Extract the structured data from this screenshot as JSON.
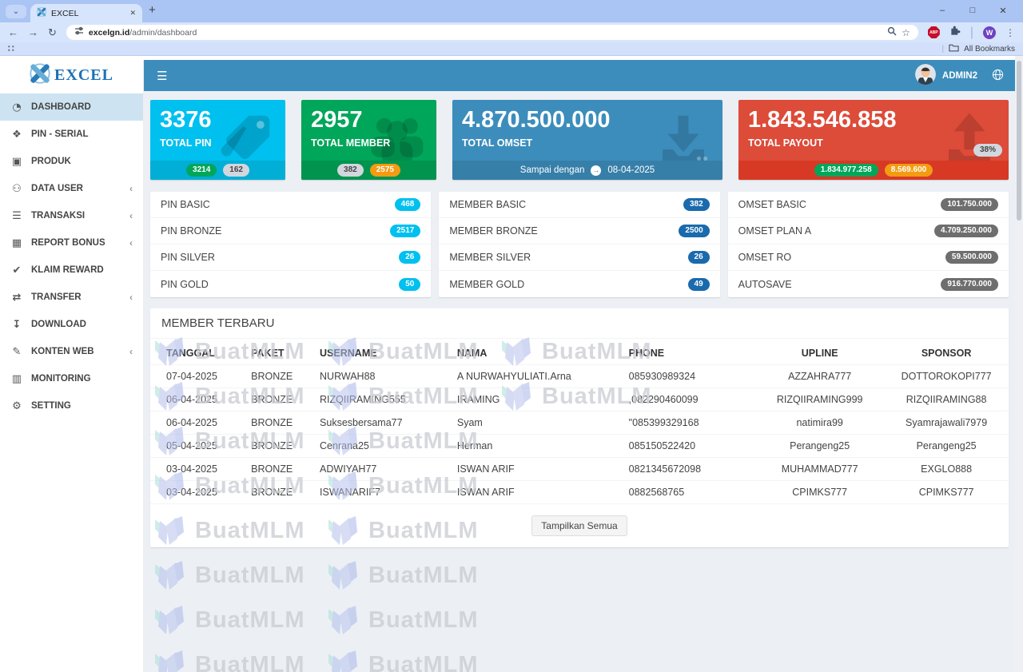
{
  "browser": {
    "tab_title": "EXCEL",
    "new_tab": "+",
    "url_host": "excelgn.id",
    "url_path": "/admin/dashboard",
    "bookmarks_label": "All Bookmarks",
    "profile_initial": "W",
    "abp_label": "ABP"
  },
  "header": {
    "user": "ADMIN2"
  },
  "sidebar": {
    "logo_text": "EXCEL",
    "items": [
      {
        "label": "DASHBOARD",
        "icon": "dashboard-icon",
        "glyph": "◔",
        "active": true,
        "chevron": false
      },
      {
        "label": "PIN - SERIAL",
        "icon": "tag-icon",
        "glyph": "❖",
        "active": false,
        "chevron": false
      },
      {
        "label": "PRODUK",
        "icon": "cube-icon",
        "glyph": "▣",
        "active": false,
        "chevron": false
      },
      {
        "label": "DATA USER",
        "icon": "users-icon",
        "glyph": "⚇",
        "active": false,
        "chevron": true
      },
      {
        "label": "TRANSAKSI",
        "icon": "list-icon",
        "glyph": "☰",
        "active": false,
        "chevron": true
      },
      {
        "label": "REPORT BONUS",
        "icon": "money-icon",
        "glyph": "▦",
        "active": false,
        "chevron": true
      },
      {
        "label": "KLAIM REWARD",
        "icon": "check-icon",
        "glyph": "✔",
        "active": false,
        "chevron": false
      },
      {
        "label": "TRANSFER",
        "icon": "transfer-icon",
        "glyph": "⇄",
        "active": false,
        "chevron": true
      },
      {
        "label": "DOWNLOAD",
        "icon": "download-icon",
        "glyph": "↧",
        "active": false,
        "chevron": false
      },
      {
        "label": "KONTEN WEB",
        "icon": "edit-icon",
        "glyph": "✎",
        "active": false,
        "chevron": true
      },
      {
        "label": "MONITORING",
        "icon": "chart-icon",
        "glyph": "▥",
        "active": false,
        "chevron": false
      },
      {
        "label": "SETTING",
        "icon": "gears-icon",
        "glyph": "⚙",
        "active": false,
        "chevron": false
      }
    ]
  },
  "cards": [
    {
      "value": "3376",
      "label": "TOTAL PIN",
      "color": "#00c0ef",
      "footer_color": "#00aed6",
      "icon": "tags-icon",
      "badges": [
        {
          "text": "3214",
          "color": "#00a65a",
          "dark": false
        },
        {
          "text": "162",
          "color": "#d2d6de",
          "dark": true
        }
      ]
    },
    {
      "value": "2957",
      "label": "TOTAL MEMBER",
      "color": "#00a65a",
      "footer_color": "#00944f",
      "icon": "group-icon",
      "badges": [
        {
          "text": "382",
          "color": "#d2d6de",
          "dark": true
        },
        {
          "text": "2575",
          "color": "#f39c12",
          "dark": false
        }
      ]
    },
    {
      "value": "4.870.500.000",
      "label": "TOTAL OMSET",
      "color": "#3c8dbc",
      "footer_color": "#367fa9",
      "icon": "download-arrow-icon",
      "footer_text": "Sampai dengan",
      "footer_date": "08-04-2025"
    },
    {
      "value": "1.843.546.858",
      "label": "TOTAL PAYOUT",
      "color": "#dd4b39",
      "footer_color": "#d73925",
      "icon": "upload-arrow-icon",
      "pct_badge": "38%",
      "badges": [
        {
          "text": "1.834.977.258",
          "color": "#00a65a",
          "dark": false
        },
        {
          "text": "8.569.600",
          "color": "#f39c12",
          "dark": false
        }
      ]
    }
  ],
  "panels": [
    {
      "badge_color": "#00c0ef",
      "rows": [
        {
          "label": "PIN BASIC",
          "value": "468"
        },
        {
          "label": "PIN BRONZE",
          "value": "2517"
        },
        {
          "label": "PIN SILVER",
          "value": "26"
        },
        {
          "label": "PIN GOLD",
          "value": "50"
        }
      ]
    },
    {
      "badge_color": "#1a6aad",
      "rows": [
        {
          "label": "MEMBER BASIC",
          "value": "382"
        },
        {
          "label": "MEMBER BRONZE",
          "value": "2500"
        },
        {
          "label": "MEMBER SILVER",
          "value": "26"
        },
        {
          "label": "MEMBER GOLD",
          "value": "49"
        }
      ]
    },
    {
      "badge_color": "#6e6e6e",
      "rows": [
        {
          "label": "OMSET BASIC",
          "value": "101.750.000"
        },
        {
          "label": "OMSET PLAN A",
          "value": "4.709.250.000"
        },
        {
          "label": "OMSET RO",
          "value": "59.500.000"
        },
        {
          "label": "AUTOSAVE",
          "value": "916.770.000"
        }
      ]
    }
  ],
  "table": {
    "title": "MEMBER TERBARU",
    "headers": [
      "TANGGAL",
      "PAKET",
      "USERNAME",
      "NAMA",
      "PHONE",
      "UPLINE",
      "SPONSOR"
    ],
    "rows": [
      [
        "07-04-2025",
        "BRONZE",
        "NURWAH88",
        "A NURWAHYULIATI.Arna",
        "085930989324",
        "AZZAHRA777",
        "DOTTOROKOPI777"
      ],
      [
        "06-04-2025",
        "BRONZE",
        "RIZQIIRAMING555",
        "IRAMING",
        ",082290460099",
        "RIZQIIRAMING999",
        "RIZQIIRAMING88"
      ],
      [
        "06-04-2025",
        "BRONZE",
        "Suksesbersama77",
        "Syam",
        "\"085399329168",
        "natimira99",
        "Syamrajawali7979"
      ],
      [
        "05-04-2025",
        "BRONZE",
        "Cenrana25",
        "Herman",
        "085150522420",
        "Perangeng25",
        "Perangeng25"
      ],
      [
        "03-04-2025",
        "BRONZE",
        "ADWIYAH77",
        "ISWAN ARIF",
        "0821345672098",
        "MUHAMMAD777",
        "EXGLO888"
      ],
      [
        "03-04-2025",
        "BRONZE",
        "ISWANARIF7",
        "ISWAN ARIF",
        "0882568765",
        "CPIMKS777",
        "CPIMKS777"
      ]
    ],
    "button": "Tampilkan Semua"
  },
  "watermark": {
    "text": "BuatMLM"
  }
}
